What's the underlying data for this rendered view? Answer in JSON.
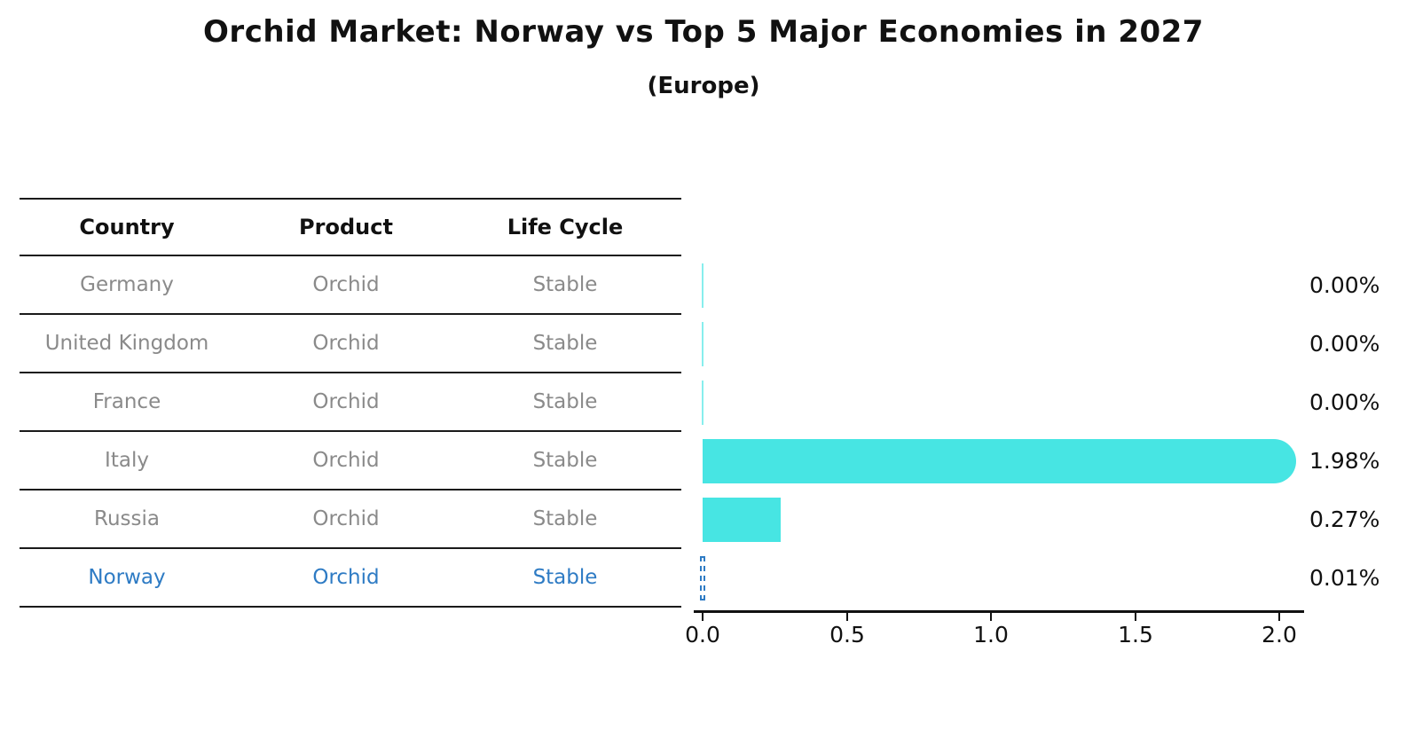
{
  "title": "Orchid Market: Norway vs Top 5 Major Economies in 2027",
  "subtitle": "(Europe)",
  "colors": {
    "bar_fill": "#47e5e3",
    "highlight_blue": "#2e7bc4",
    "table_text_muted": "#8a8a8a",
    "text_primary": "#111111"
  },
  "table": {
    "columns": [
      "Country",
      "Product",
      "Life Cycle"
    ]
  },
  "chart_data": {
    "type": "bar",
    "orientation": "horizontal",
    "title": "Orchid Market: Norway vs Top 5 Major Economies in 2027",
    "subtitle": "(Europe)",
    "xlim": [
      0.0,
      2.1
    ],
    "x_ticks": [
      "0.0",
      "0.5",
      "1.0",
      "1.5",
      "2.0"
    ],
    "grid": "off",
    "legend": "none",
    "value_unit": "%",
    "rows": [
      {
        "country": "Germany",
        "product": "Orchid",
        "life_cycle": "Stable",
        "value": 0.0,
        "share": "0.00%",
        "highlighted": false
      },
      {
        "country": "United Kingdom",
        "product": "Orchid",
        "life_cycle": "Stable",
        "value": 0.0,
        "share": "0.00%",
        "highlighted": false
      },
      {
        "country": "France",
        "product": "Orchid",
        "life_cycle": "Stable",
        "value": 0.0,
        "share": "0.00%",
        "highlighted": false
      },
      {
        "country": "Italy",
        "product": "Orchid",
        "life_cycle": "Stable",
        "value": 1.98,
        "share": "1.98%",
        "highlighted": false
      },
      {
        "country": "Russia",
        "product": "Orchid",
        "life_cycle": "Stable",
        "value": 0.27,
        "share": "0.27%",
        "highlighted": false
      },
      {
        "country": "Norway",
        "product": "Orchid",
        "life_cycle": "Stable",
        "value": 0.01,
        "share": "0.01%",
        "highlighted": true
      }
    ]
  }
}
